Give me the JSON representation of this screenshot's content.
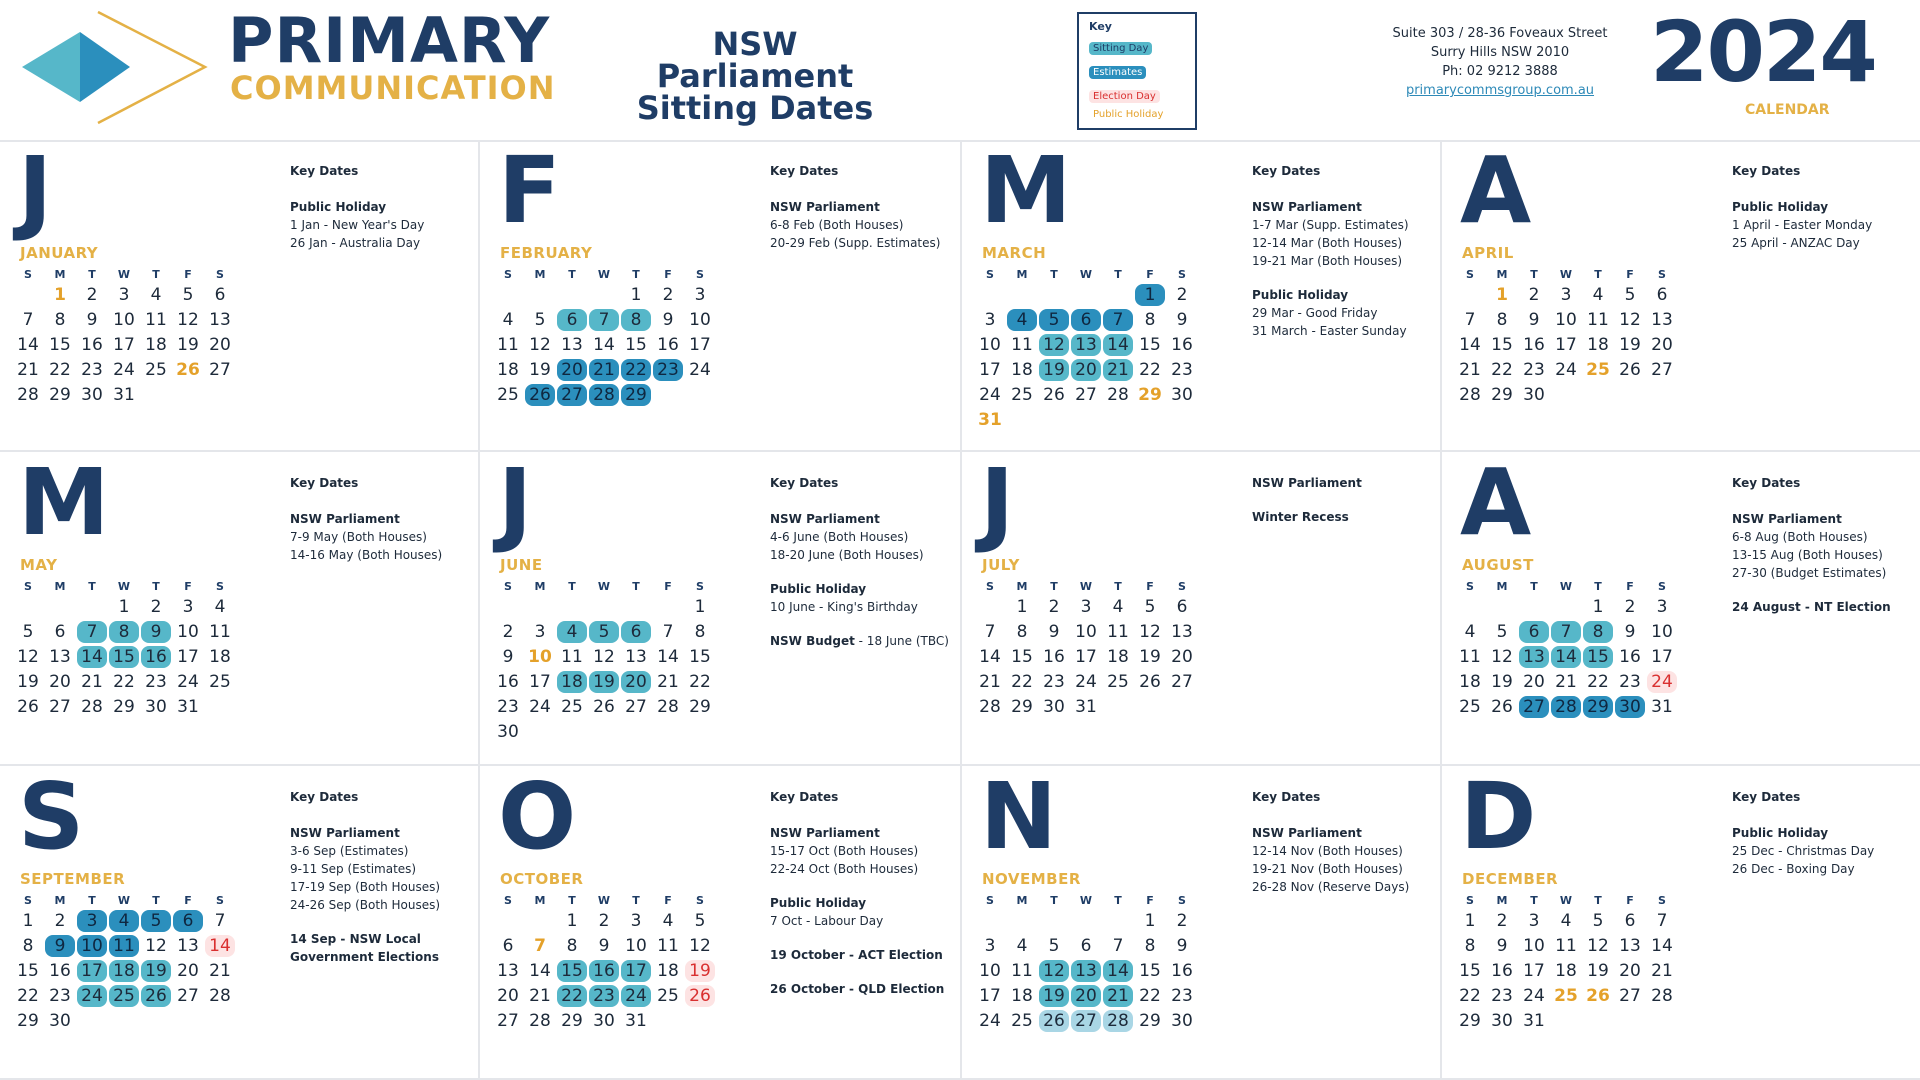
{
  "header": {
    "brand_line1": "PRIMARY",
    "brand_line2": "COMMUNICATION",
    "title_line1": "NSW Parliament",
    "title_line2": "Sitting Dates",
    "key": {
      "title": "Key",
      "sitting": "Sitting Day",
      "estimates": "Estimates",
      "election": "Election Day",
      "holiday": "Public Holiday"
    },
    "address_line1": "Suite 303 / 28-36 Foveaux Street",
    "address_line2": "Surry Hills NSW 2010",
    "phone": "Ph: 02 9212 3888",
    "website": "primarycommsgroup.com.au",
    "year": "2024",
    "year_label": "CALENDAR"
  },
  "colors": {
    "navy": "#1f3d66",
    "gold": "#e4b146",
    "sitting": "#56b7c9",
    "estimates": "#2b8fbd",
    "reserve": "#a9d6e5",
    "election": "#d93030"
  },
  "weekday_labels": [
    "S",
    "M",
    "T",
    "W",
    "T",
    "F",
    "S"
  ],
  "months": [
    {
      "letter": "J",
      "name": "JANUARY",
      "offset": 1,
      "days": 31,
      "sit": [],
      "est": [],
      "res": [],
      "elec": [],
      "ph": [
        1,
        26
      ],
      "notes": [
        {
          "title": "Public Holiday",
          "lines": [
            "1 Jan - New Year's Day",
            "26 Jan - Australia Day"
          ]
        }
      ]
    },
    {
      "letter": "F",
      "name": "FEBRUARY",
      "offset": 4,
      "days": 29,
      "sit": [
        6,
        7,
        8
      ],
      "est": [
        20,
        21,
        22,
        23,
        26,
        27,
        28,
        29
      ],
      "res": [],
      "elec": [],
      "ph": [],
      "notes": [
        {
          "title": "NSW Parliament",
          "lines": [
            "6-8 Feb (Both Houses)",
            "20-29 Feb (Supp. Estimates)"
          ]
        }
      ]
    },
    {
      "letter": "M",
      "name": "MARCH",
      "offset": 5,
      "days": 31,
      "sit": [
        12,
        13,
        14,
        19,
        20,
        21
      ],
      "est": [
        1,
        4,
        5,
        6,
        7
      ],
      "res": [],
      "elec": [],
      "ph": [
        29,
        31
      ],
      "notes": [
        {
          "title": "NSW Parliament",
          "lines": [
            "1-7 Mar (Supp. Estimates)",
            "12-14 Mar (Both Houses)",
            "19-21 Mar (Both Houses)"
          ]
        },
        {
          "title": "Public Holiday",
          "lines": [
            "29 Mar - Good Friday",
            "31 March - Easter Sunday"
          ]
        }
      ]
    },
    {
      "letter": "A",
      "name": "APRIL",
      "offset": 1,
      "days": 30,
      "sit": [],
      "est": [],
      "res": [],
      "elec": [],
      "ph": [
        1,
        25
      ],
      "notes": [
        {
          "title": "Public Holiday",
          "lines": [
            "1 April - Easter Monday",
            "25 April - ANZAC Day"
          ]
        }
      ]
    },
    {
      "letter": "M",
      "name": "MAY",
      "offset": 3,
      "days": 31,
      "sit": [
        7,
        8,
        9,
        14,
        15,
        16
      ],
      "est": [],
      "res": [],
      "elec": [],
      "ph": [],
      "notes": [
        {
          "title": "NSW Parliament",
          "lines": [
            "7-9 May (Both Houses)",
            "14-16 May (Both Houses)"
          ]
        }
      ]
    },
    {
      "letter": "J",
      "name": "JUNE",
      "offset": 6,
      "days": 30,
      "sit": [
        4,
        5,
        6,
        18,
        19,
        20
      ],
      "est": [],
      "res": [],
      "elec": [],
      "ph": [
        10
      ],
      "notes": [
        {
          "title": "NSW Parliament",
          "lines": [
            "4-6 June (Both Houses)",
            "18-20 June (Both Houses)"
          ]
        },
        {
          "title": "Public Holiday",
          "lines": [
            "10 June - King's Birthday"
          ]
        },
        {
          "title": "",
          "bold_prefix": "NSW Budget",
          "lines": [
            " - 18 June (TBC)"
          ]
        }
      ]
    },
    {
      "letter": "J",
      "name": "JULY",
      "offset": 1,
      "days": 31,
      "sit": [],
      "est": [],
      "res": [],
      "elec": [],
      "ph": [],
      "notes": [
        {
          "title": "NSW Parliament",
          "lines": []
        },
        {
          "title": "Winter Recess",
          "lines": []
        }
      ]
    },
    {
      "letter": "A",
      "name": "AUGUST",
      "offset": 4,
      "days": 31,
      "sit": [
        6,
        7,
        8,
        13,
        14,
        15
      ],
      "est": [
        27,
        28,
        29,
        30
      ],
      "res": [],
      "elec": [
        24
      ],
      "ph": [],
      "notes": [
        {
          "title": "NSW Parliament",
          "lines": [
            "6-8 Aug (Both Houses)",
            "13-15 Aug (Both Houses)",
            "27-30 (Budget Estimates)"
          ]
        },
        {
          "title": "24 August - NT Election",
          "lines": []
        }
      ]
    },
    {
      "letter": "S",
      "name": "SEPTEMBER",
      "offset": 0,
      "days": 30,
      "sit": [
        17,
        18,
        19,
        24,
        25,
        26
      ],
      "est": [
        3,
        4,
        5,
        6,
        9,
        10,
        11
      ],
      "res": [],
      "elec": [
        14
      ],
      "ph": [],
      "notes": [
        {
          "title": "NSW Parliament",
          "lines": [
            "3-6 Sep (Estimates)",
            "9-11 Sep (Estimates)",
            "17-19 Sep (Both Houses)",
            "24-26 Sep (Both Houses)"
          ]
        },
        {
          "title": "14 Sep - NSW Local Government Elections",
          "lines": []
        }
      ]
    },
    {
      "letter": "O",
      "name": "OCTOBER",
      "offset": 2,
      "days": 31,
      "sit": [
        15,
        16,
        17,
        22,
        23,
        24
      ],
      "est": [],
      "res": [],
      "elec": [
        19,
        26
      ],
      "ph": [
        7
      ],
      "notes": [
        {
          "title": "NSW Parliament",
          "lines": [
            "15-17 Oct (Both Houses)",
            "22-24 Oct (Both Houses)"
          ]
        },
        {
          "title": "Public Holiday",
          "lines": [
            "7 Oct - Labour Day"
          ]
        },
        {
          "title": "19 October - ACT Election",
          "lines": []
        },
        {
          "title": "26 October - QLD Election",
          "lines": []
        }
      ]
    },
    {
      "letter": "N",
      "name": "NOVEMBER",
      "offset": 5,
      "days": 30,
      "sit": [
        12,
        13,
        14,
        19,
        20,
        21
      ],
      "est": [],
      "res": [
        26,
        27,
        28
      ],
      "elec": [],
      "ph": [],
      "notes": [
        {
          "title": "NSW Parliament",
          "lines": [
            "12-14 Nov (Both Houses)",
            "19-21 Nov (Both Houses)",
            "26-28 Nov (Reserve Days)"
          ]
        }
      ]
    },
    {
      "letter": "D",
      "name": "DECEMBER",
      "offset": 0,
      "days": 31,
      "sit": [],
      "est": [],
      "res": [],
      "elec": [],
      "ph": [
        25,
        26
      ],
      "notes": [
        {
          "title": "Public Holiday",
          "lines": [
            "25 Dec - Christmas Day",
            "26 Dec - Boxing Day"
          ]
        }
      ]
    }
  ],
  "key_dates_label": "Key Dates"
}
